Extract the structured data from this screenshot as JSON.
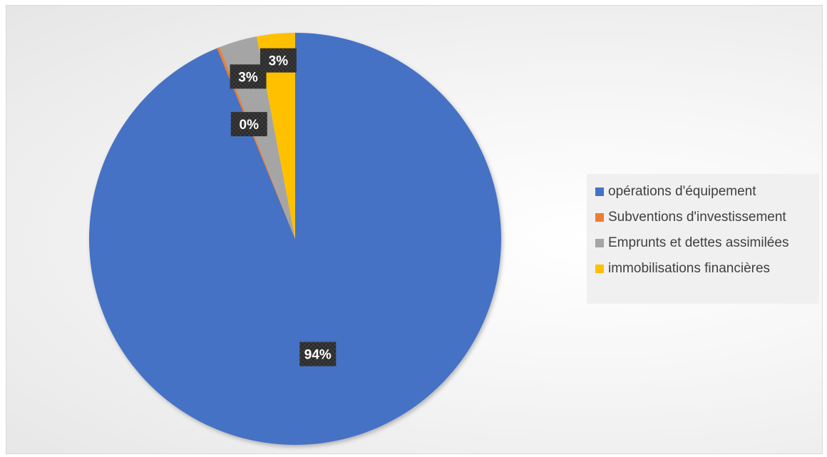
{
  "chart_data": {
    "type": "pie",
    "title": "",
    "slices": [
      {
        "name": "opérations d'équipement",
        "value": 94,
        "label": "94%",
        "color": "#4472C4"
      },
      {
        "name": "Subventions d'investissement",
        "value": 0.2,
        "label": "0%",
        "color": "#ED7D31"
      },
      {
        "name": "Emprunts et dettes assimilées",
        "value": 3,
        "label": "3%",
        "color": "#A5A5A5"
      },
      {
        "name": "immobilisations financières",
        "value": 3,
        "label": "3%",
        "color": "#FFC000"
      }
    ],
    "legend_position": "right",
    "data_label_style": "dark-box-white-bold"
  }
}
